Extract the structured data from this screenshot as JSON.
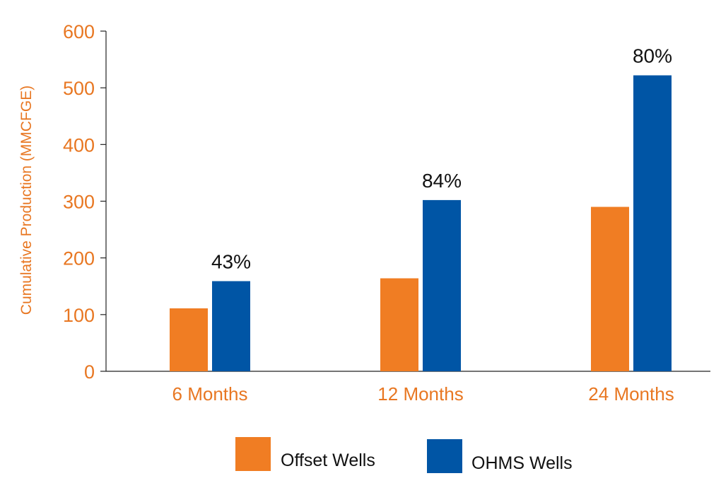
{
  "colors": {
    "accent_text": "#E87722",
    "offset": "#F07D23",
    "ohms": "#0055A5",
    "axis": "#222222"
  },
  "chart_data": {
    "type": "bar",
    "categories": [
      "6 Months",
      "12 Months",
      "24 Months"
    ],
    "series": [
      {
        "name": "Offset Wells",
        "values": [
          111,
          164,
          290
        ],
        "color": "#F07D23"
      },
      {
        "name": "OHMS Wells",
        "values": [
          159,
          302,
          522
        ],
        "color": "#0055A5"
      }
    ],
    "data_labels": [
      "43%",
      "84%",
      "80%"
    ],
    "title": "",
    "xlabel": "",
    "ylabel": "Cumulative Production (MMCFGE)",
    "ylim": [
      0,
      600
    ],
    "yticks": [
      0,
      100,
      200,
      300,
      400,
      500,
      600
    ],
    "grid": false,
    "legend_position": "bottom"
  }
}
